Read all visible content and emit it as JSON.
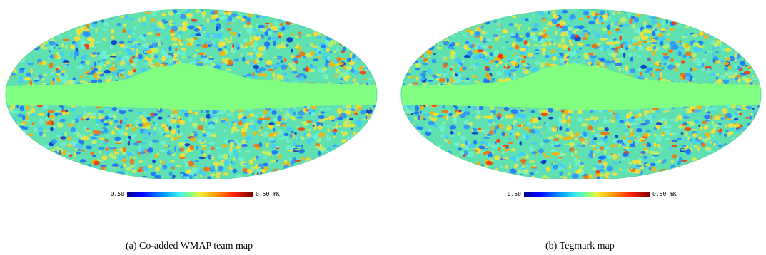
{
  "panels": [
    {
      "caption": "(a) Co-added WMAP team map",
      "colorbar": {
        "min_label": "−0.50",
        "max_label": "0.50 mK"
      },
      "projection": "Mollweide",
      "colors": {
        "mask": "#80ff80",
        "cold": "#0050ff",
        "hot": "#ffe000"
      }
    },
    {
      "caption": "(b) Tegmark map",
      "colorbar": {
        "min_label": "−0.50",
        "max_label": "0.50 mK"
      },
      "projection": "Mollweide",
      "colors": {
        "mask": "#80ff80",
        "cold": "#0050ff",
        "hot": "#ffe000"
      }
    }
  ]
}
